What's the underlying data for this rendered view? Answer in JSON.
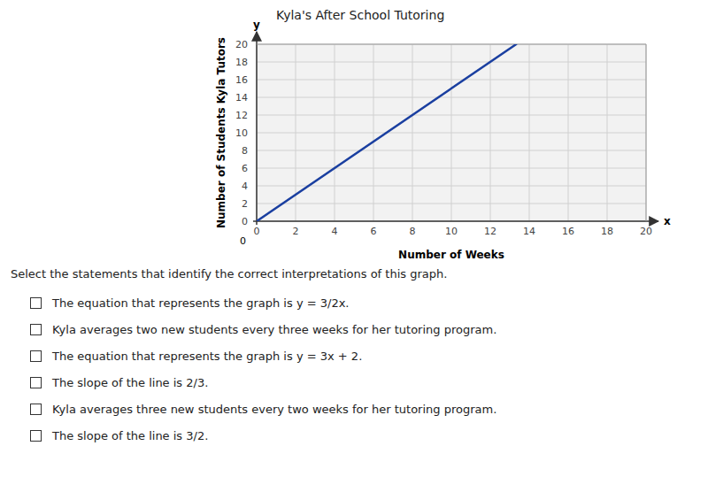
{
  "chart_data": {
    "type": "line",
    "title": "Kyla's After School Tutoring",
    "xlabel": "Number of Weeks",
    "ylabel": "Number of Students Kyla Tutors",
    "x": [
      0,
      13.33
    ],
    "values": [
      0,
      20
    ],
    "color": "#1a3fa0",
    "xlim": [
      0,
      20
    ],
    "ylim": [
      0,
      20
    ],
    "xticks": [
      0,
      2,
      4,
      6,
      8,
      10,
      12,
      14,
      16,
      18,
      20
    ],
    "yticks": [
      0,
      2,
      4,
      6,
      8,
      10,
      12,
      14,
      16,
      18,
      20
    ],
    "grid": true,
    "annotations": [
      "x",
      "y",
      "0"
    ]
  },
  "header_text": "Select the statements that identify the correct interpretations of this graph.",
  "option_texts": [
    "The equation that represents the graph is y = 3/2x.",
    "Kyla averages two new students every three weeks for her tutoring program.",
    "The equation that represents the graph is y = 3x + 2.",
    "The slope of the line is 2/3.",
    "Kyla averages three new students every two weeks for her tutoring program.",
    "The slope of the line is 3/2."
  ]
}
